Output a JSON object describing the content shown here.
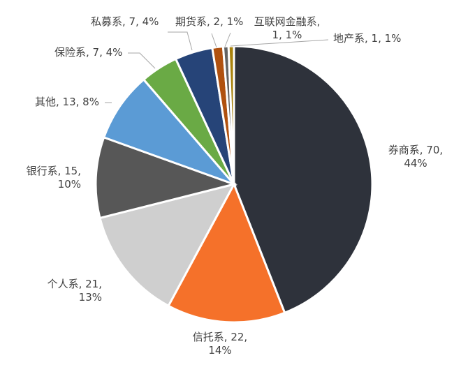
{
  "chart_data": {
    "type": "pie",
    "start_angle_deg": 0,
    "direction": "clockwise",
    "slices": [
      {
        "label": "券商系",
        "value": 70,
        "percent": "44%",
        "color": "#2e323b"
      },
      {
        "label": "信托系",
        "value": 22,
        "percent": "14%",
        "color": "#f5712a"
      },
      {
        "label": "个人系",
        "value": 21,
        "percent": "13%",
        "color": "#cfcfcf"
      },
      {
        "label": "银行系",
        "value": 15,
        "percent": "10%",
        "color": "#575757"
      },
      {
        "label": "其他",
        "value": 13,
        "percent": "8%",
        "color": "#5b9bd5"
      },
      {
        "label": "保险系",
        "value": 7,
        "percent": "4%",
        "color": "#6aaa45"
      },
      {
        "label": "私募系",
        "value": 7,
        "percent": "4%",
        "color": "#264478"
      },
      {
        "label": "期货系",
        "value": 2,
        "percent": "1%",
        "color": "#b0510f"
      },
      {
        "label": "互联网金融系",
        "value": 1,
        "percent": "1%",
        "color": "#636363"
      },
      {
        "label": "地产系",
        "value": 1,
        "percent": "1%",
        "color": "#a8820c"
      }
    ],
    "data_labels": [
      "券商系, 70,",
      "44%",
      "信托系, 22,",
      "14%",
      "个人系, 21,",
      "13%",
      "银行系, 15,",
      "10%",
      "其他, 13, 8%",
      "保险系, 7, 4%",
      "私募系, 7, 4%",
      "期货系, 2, 1%",
      "互联网金融系,",
      "1, 1%",
      "地产系, 1, 1%"
    ]
  }
}
